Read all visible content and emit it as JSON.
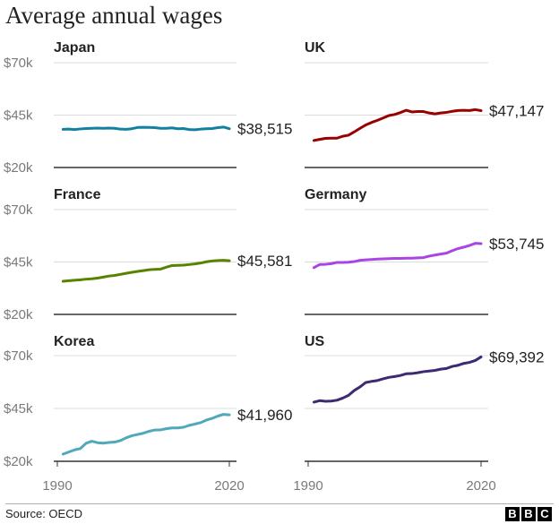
{
  "title": "Average annual wages",
  "source": "Source: OECD",
  "logo_letters": [
    "B",
    "B",
    "C"
  ],
  "chart_data": {
    "type": "line",
    "layout": "small-multiples",
    "ylim": [
      20000,
      70000
    ],
    "yticks": [
      20000,
      45000,
      70000
    ],
    "ytick_labels": [
      "$20k",
      "$45k",
      "$70k"
    ],
    "xlim": [
      1990,
      2020
    ],
    "xtick_labels": [
      "1990",
      "2020"
    ],
    "grid": true,
    "panels": [
      {
        "name": "Japan",
        "color": "#1380a1",
        "end_label": "$38,515",
        "x": [
          1991,
          1992,
          1993,
          1994,
          1995,
          1996,
          1997,
          1998,
          1999,
          2000,
          2001,
          2002,
          2003,
          2004,
          2005,
          2006,
          2007,
          2008,
          2009,
          2010,
          2011,
          2012,
          2013,
          2014,
          2015,
          2016,
          2017,
          2018,
          2019,
          2020
        ],
        "values": [
          38200,
          38300,
          38100,
          38400,
          38600,
          38700,
          38800,
          38700,
          38800,
          38700,
          38300,
          38200,
          38500,
          39100,
          39200,
          39100,
          39000,
          38700,
          38700,
          38900,
          38500,
          38600,
          38100,
          38000,
          38300,
          38500,
          38600,
          39000,
          39300,
          38515
        ]
      },
      {
        "name": "UK",
        "color": "#990000",
        "end_label": "$47,147",
        "x": [
          1991,
          1992,
          1993,
          1994,
          1995,
          1996,
          1997,
          1998,
          1999,
          2000,
          2001,
          2002,
          2003,
          2004,
          2005,
          2006,
          2007,
          2008,
          2009,
          2010,
          2011,
          2012,
          2013,
          2014,
          2015,
          2016,
          2017,
          2018,
          2019,
          2020
        ],
        "values": [
          32900,
          33400,
          33900,
          34000,
          34000,
          34900,
          35400,
          37000,
          38700,
          40300,
          41500,
          42500,
          43600,
          44800,
          45300,
          46200,
          47300,
          46500,
          46700,
          46700,
          46000,
          45600,
          46000,
          46300,
          46800,
          47200,
          47300,
          47200,
          47600,
          47147
        ]
      },
      {
        "name": "France",
        "color": "#588300",
        "end_label": "$45,581",
        "x": [
          1991,
          1992,
          1993,
          1994,
          1995,
          1996,
          1997,
          1998,
          1999,
          2000,
          2001,
          2002,
          2003,
          2004,
          2005,
          2006,
          2007,
          2008,
          2009,
          2010,
          2011,
          2012,
          2013,
          2014,
          2015,
          2016,
          2017,
          2018,
          2019,
          2020
        ],
        "values": [
          35800,
          36100,
          36300,
          36500,
          36800,
          37000,
          37300,
          37800,
          38300,
          38600,
          39100,
          39600,
          40100,
          40500,
          40900,
          41300,
          41500,
          41600,
          42500,
          43300,
          43400,
          43500,
          43800,
          44100,
          44500,
          45100,
          45500,
          45700,
          45800,
          45581
        ]
      },
      {
        "name": "Germany",
        "color": "#a945e2",
        "end_label": "$53,745",
        "x": [
          1991,
          1992,
          1993,
          1994,
          1995,
          1996,
          1997,
          1998,
          1999,
          2000,
          2001,
          2002,
          2003,
          2004,
          2005,
          2006,
          2007,
          2008,
          2009,
          2010,
          2011,
          2012,
          2013,
          2014,
          2015,
          2016,
          2017,
          2018,
          2019,
          2020
        ],
        "values": [
          42300,
          43800,
          43900,
          44200,
          44800,
          44800,
          44900,
          45200,
          45800,
          46000,
          46200,
          46400,
          46500,
          46600,
          46700,
          46700,
          46800,
          46800,
          47000,
          47100,
          47800,
          48300,
          48800,
          49200,
          50400,
          51400,
          52100,
          52900,
          53900,
          53745
        ]
      },
      {
        "name": "Korea",
        "color": "#52a8bb",
        "end_label": "$41,960",
        "x": [
          1991,
          1992,
          1993,
          1994,
          1995,
          1996,
          1997,
          1998,
          1999,
          2000,
          2001,
          2002,
          2003,
          2004,
          2005,
          2006,
          2007,
          2008,
          2009,
          2010,
          2011,
          2012,
          2013,
          2014,
          2015,
          2016,
          2017,
          2018,
          2019,
          2020
        ],
        "values": [
          23400,
          24400,
          25400,
          26000,
          28500,
          29500,
          28800,
          28600,
          28900,
          29100,
          29800,
          31100,
          32100,
          32700,
          33300,
          34200,
          34800,
          34900,
          35400,
          35800,
          35800,
          36100,
          37000,
          37600,
          38300,
          39500,
          40300,
          41400,
          42200,
          41960
        ]
      },
      {
        "name": "US",
        "color": "#3e2a72",
        "end_label": "$69,392",
        "x": [
          1991,
          1992,
          1993,
          1994,
          1995,
          1996,
          1997,
          1998,
          1999,
          2000,
          2001,
          2002,
          2003,
          2004,
          2005,
          2006,
          2007,
          2008,
          2009,
          2010,
          2011,
          2012,
          2013,
          2014,
          2015,
          2016,
          2017,
          2018,
          2019,
          2020
        ],
        "values": [
          48000,
          48700,
          48400,
          48500,
          48900,
          49900,
          51200,
          53500,
          55200,
          57300,
          57800,
          58200,
          59000,
          59700,
          60100,
          60600,
          61400,
          61500,
          61900,
          62400,
          62700,
          63000,
          63600,
          63900,
          64900,
          65400,
          66300,
          66800,
          67700,
          69392
        ]
      }
    ]
  }
}
